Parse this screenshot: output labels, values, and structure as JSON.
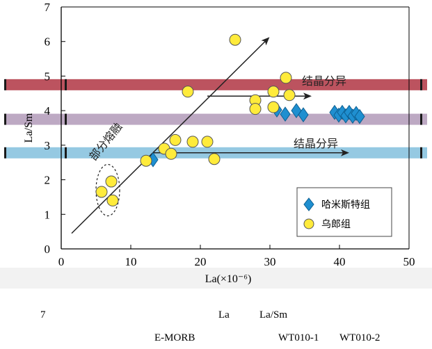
{
  "chart_data": {
    "type": "scatter",
    "xlabel": "La(×10⁻⁶)",
    "ylabel": "La/Sm",
    "xlim": [
      0,
      50
    ],
    "ylim": [
      0,
      7
    ],
    "x_ticks": [
      0,
      10,
      20,
      30,
      40,
      50
    ],
    "y_ticks": [
      0,
      1,
      2,
      3,
      4,
      5,
      6,
      7
    ],
    "series": [
      {
        "name": "哈米斯特组",
        "marker": "diamond",
        "color": "#1f8fd0",
        "points": [
          [
            13.2,
            2.58
          ],
          [
            31.0,
            4.02
          ],
          [
            32.2,
            3.9
          ],
          [
            33.8,
            4.0
          ],
          [
            34.8,
            3.88
          ],
          [
            39.3,
            3.95
          ],
          [
            39.9,
            3.87
          ],
          [
            40.4,
            3.95
          ],
          [
            40.9,
            3.85
          ],
          [
            41.4,
            3.95
          ],
          [
            41.9,
            3.84
          ],
          [
            42.4,
            3.92
          ],
          [
            42.9,
            3.83
          ]
        ]
      },
      {
        "name": "乌郎组",
        "marker": "circle",
        "color": "#ffeb3b",
        "points": [
          [
            5.8,
            1.65
          ],
          [
            7.2,
            1.95
          ],
          [
            7.4,
            1.4
          ],
          [
            12.2,
            2.55
          ],
          [
            14.8,
            2.9
          ],
          [
            15.8,
            2.75
          ],
          [
            16.4,
            3.15
          ],
          [
            18.9,
            3.1
          ],
          [
            21.0,
            3.1
          ],
          [
            22.0,
            2.6
          ],
          [
            18.2,
            4.55
          ],
          [
            25.0,
            6.05
          ],
          [
            27.9,
            4.3
          ],
          [
            27.9,
            4.05
          ],
          [
            30.5,
            4.1
          ],
          [
            30.5,
            4.55
          ],
          [
            32.3,
            4.95
          ],
          [
            32.8,
            4.45
          ]
        ]
      }
    ],
    "legend_position": "bottom-right",
    "grid": false,
    "annotations": {
      "partial_melting": "部分熔融",
      "fractional_crystallization_upper": "结晶分异",
      "fractional_crystallization_lower": "结晶分异"
    },
    "bands": [
      {
        "y": 4.75,
        "color": "#b84a56"
      },
      {
        "y": 3.75,
        "color": "#b9a4c0"
      },
      {
        "y": 2.78,
        "color": "#8fc6e0"
      }
    ]
  },
  "caption": {
    "figure_number": "7",
    "line1_a": "La",
    "line1_b": "La/Sm",
    "line2_a": "E-MORB",
    "line2_b": "WT010-1",
    "line2_c": "WT010-2"
  }
}
